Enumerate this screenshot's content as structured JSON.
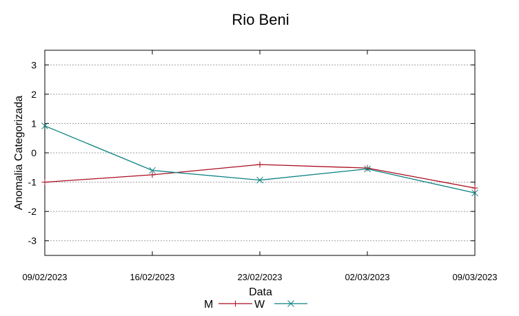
{
  "chart_data": {
    "type": "line",
    "title": "Rio Beni",
    "xlabel": "Data",
    "ylabel": "Anomalia Categorizada",
    "categories": [
      "09/02/2023",
      "16/02/2023",
      "23/02/2023",
      "02/03/2023",
      "09/03/2023"
    ],
    "yticks": [
      "3",
      "2",
      "1",
      "0",
      "-1",
      "-2",
      "-3"
    ],
    "ylim": [
      -3.5,
      3.5
    ],
    "grid": true,
    "legend_position": "bottom",
    "series": [
      {
        "name": "M",
        "values": [
          -1.0,
          -0.75,
          -0.4,
          -0.52,
          -1.2
        ],
        "color": "#aa0a1e",
        "marker": "plus"
      },
      {
        "name": "W",
        "values": [
          0.92,
          -0.6,
          -0.93,
          -0.55,
          -1.37
        ],
        "color": "#0a8080",
        "marker": "x"
      }
    ]
  }
}
